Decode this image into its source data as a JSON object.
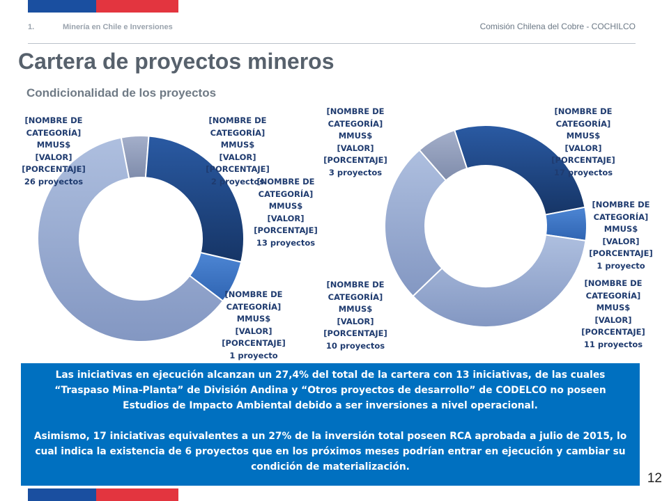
{
  "header": {
    "section_number": "1.",
    "section_title": "Minería en Chile e Inversiones",
    "organization": "Comisión Chilena del Cobre - COCHILCO"
  },
  "title": "Cartera de proyectos mineros",
  "subtitle": "Condicionalidad de los proyectos",
  "colors": {
    "brand_blue": "#1a4fa0",
    "brand_red": "#e3353f",
    "callout_bg": "#0070c0",
    "dark_navy": "#1d4278",
    "mid_blue": "#3b74c4",
    "light_slate": "#9fb1d2",
    "grey_slate": "#8b97b4"
  },
  "chart_data": [
    {
      "type": "pie",
      "series": [
        {
          "label_lines": [
            "[NOMBRE DE",
            "CATEGORÍA]",
            "MMUS$",
            "[VALOR]",
            "[PORCENTAJE]",
            "2 proyectos"
          ],
          "value": 4.3,
          "color": "grey_slate"
        },
        {
          "label_lines": [
            "[NOMBRE DE",
            "CATEGORÍA]",
            "MMUS$",
            "[VALOR]",
            "[PORCENTAJE]",
            "13 proyectos"
          ],
          "value": 27.4,
          "color": "dark_navy"
        },
        {
          "label_lines": [
            "[NOMBRE DE",
            "CATEGORÍA]",
            "MMUS$",
            "[VALOR]",
            "[PORCENTAJE]",
            "1 proyecto"
          ],
          "value": 6.7,
          "color": "mid_blue"
        },
        {
          "label_lines": [
            "[NOMBRE DE",
            "CATEGORÍA]",
            "MMUS$",
            "[VALOR]",
            "[PORCENTAJE]",
            "26 proyectos"
          ],
          "value": 61.6,
          "color": "light_slate"
        }
      ]
    },
    {
      "type": "pie",
      "series": [
        {
          "label_lines": [
            "[NOMBRE DE",
            "CATEGORÍA]",
            "MMUS$",
            "[VALOR]",
            "[PORCENTAJE]",
            "17 proyectos"
          ],
          "value": 27.0,
          "color": "dark_navy"
        },
        {
          "label_lines": [
            "[NOMBRE DE",
            "CATEGORÍA]",
            "MMUS$",
            "[VALOR]",
            "[PORCENTAJE]",
            "1 proyecto"
          ],
          "value": 5.3,
          "color": "mid_blue"
        },
        {
          "label_lines": [
            "[NOMBRE DE",
            "CATEGORÍA]",
            "MMUS$",
            "[VALOR]",
            "[PORCENTAJE]",
            "11 proyectos"
          ],
          "value": 35.5,
          "color": "light_slate"
        },
        {
          "label_lines": [
            "[NOMBRE DE",
            "CATEGORÍA]",
            "MMUS$",
            "[VALOR]",
            "[PORCENTAJE]",
            "10 proyectos"
          ],
          "value": 25.8,
          "color": "light_slate"
        },
        {
          "label_lines": [
            "[NOMBRE DE",
            "CATEGORÍA]",
            "MMUS$",
            "[VALOR]",
            "[PORCENTAJE]",
            "3 proyectos"
          ],
          "value": 6.4,
          "color": "grey_slate"
        }
      ]
    }
  ],
  "callout": {
    "paragraph1": "Las iniciativas en ejecución alcanzan un 27,4% del total de la cartera con 13 iniciativas, de las cuales “Traspaso Mina-Planta” de División Andina y “Otros proyectos de desarrollo” de CODELCO no poseen Estudios de Impacto Ambiental debido a ser inversiones a nivel operacional.",
    "paragraph2": "Asimismo, 17 iniciativas equivalentes a un 27% de la inversión total poseen RCA aprobada a julio de 2015, lo cual indica la existencia de 6 proyectos que en los próximos meses podrían entrar en ejecución y cambiar su condición de materialización."
  },
  "page_number": "12"
}
